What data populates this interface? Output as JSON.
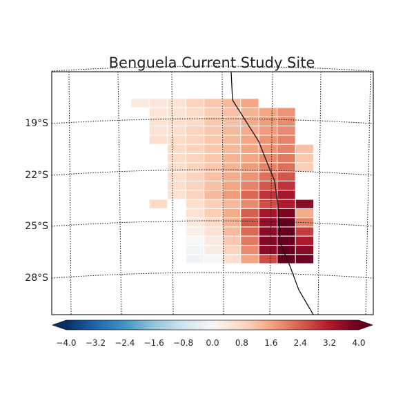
{
  "title": "Benguela Current Study Site",
  "lat_labels": [
    "19°S",
    "22°S",
    "25°S",
    "28°S"
  ],
  "colorbar": {
    "min": -4.0,
    "max": 4.0,
    "ticks": [
      "−4.0",
      "−3.2",
      "−2.4",
      "−1.6",
      "−0.8",
      "0.0",
      "0.8",
      "1.6",
      "2.4",
      "3.2",
      "4.0"
    ],
    "colormap": "RdBu_r",
    "extend": "both",
    "colors": [
      "#053061",
      "#2166ac",
      "#4393c3",
      "#92c5de",
      "#d1e5f0",
      "#f7f7f7",
      "#fddbc7",
      "#f4a582",
      "#d6604d",
      "#b2182b",
      "#67001f"
    ]
  },
  "chart_data": {
    "type": "heatmap",
    "title": "Benguela Current Study Site",
    "lat_labels": [
      "19°S",
      "22°S",
      "25°S",
      "28°S"
    ],
    "value_range": [
      -4.0,
      4.0
    ],
    "colormap": "RdBu_r",
    "grid": true,
    "coastline": true,
    "cell_rows_north_to_south": [
      {
        "start_col": 0,
        "values": [
          0.4,
          0.5,
          0.6,
          0.9,
          1.1,
          1.3,
          1.6
        ]
      },
      {
        "start_col": 1,
        "values": [
          0.5,
          0.6,
          0.8,
          1.0,
          1.2,
          1.4,
          1.6,
          1.8
        ]
      },
      {
        "start_col": 1,
        "values": [
          0.6,
          0.7,
          0.8,
          1.1,
          1.2,
          1.5,
          1.7,
          1.9
        ]
      },
      {
        "start_col": 1,
        "values": [
          0.6,
          0.7,
          0.9,
          1.1,
          1.3,
          1.5,
          1.7,
          1.9
        ]
      },
      {
        "start_col": 1,
        "values": [
          0.7,
          0.8,
          0.9,
          1.1,
          1.3,
          1.6,
          1.8,
          2.0
        ]
      },
      {
        "start_col": 2,
        "values": [
          0.8,
          0.9,
          1.1,
          1.3,
          1.6,
          1.8,
          2.0,
          1.2
        ]
      },
      {
        "start_col": 2,
        "values": [
          0.8,
          0.9,
          1.1,
          1.4,
          1.6,
          1.9,
          2.1,
          1.1
        ]
      },
      {
        "start_col": 2,
        "values": [
          0.7,
          0.9,
          1.1,
          1.4,
          1.7,
          2.0,
          2.2,
          1.0
        ]
      },
      {
        "start_col": 2,
        "values": [
          0.7,
          0.9,
          1.2,
          1.5,
          1.8,
          2.2,
          2.5
        ]
      },
      {
        "start_col": 2,
        "values": [
          0.7,
          0.9,
          1.2,
          1.6,
          2.0,
          2.5,
          2.9
        ]
      },
      {
        "start_col": 2,
        "values": [
          0.6,
          0.9,
          1.3,
          1.7,
          2.3,
          2.9,
          3.3
        ]
      },
      {
        "start_col": 1,
        "values": [
          0.8,
          null,
          0.7,
          1.0,
          1.3,
          1.9,
          2.6,
          3.2,
          3.6
        ]
      },
      {
        "start_col": 3,
        "values": [
          0.6,
          1.0,
          1.5,
          2.4,
          3.3,
          3.8,
          1.5
        ]
      },
      {
        "start_col": 3,
        "values": [
          0.4,
          0.8,
          1.4,
          2.5,
          3.5,
          4.0,
          2.0
        ]
      },
      {
        "start_col": 3,
        "values": [
          0.2,
          0.6,
          1.3,
          2.3,
          3.6,
          4.0,
          2.8
        ]
      },
      {
        "start_col": 3,
        "values": [
          0.0,
          0.4,
          1.1,
          2.1,
          3.7,
          4.0,
          3.2
        ]
      },
      {
        "start_col": 3,
        "values": [
          -0.1,
          0.3,
          0.9,
          1.9,
          3.6,
          4.0,
          3.6
        ]
      },
      {
        "start_col": 3,
        "values": [
          -0.2,
          0.0,
          0.7,
          1.6,
          2.6,
          4.0,
          3.9
        ]
      }
    ]
  }
}
